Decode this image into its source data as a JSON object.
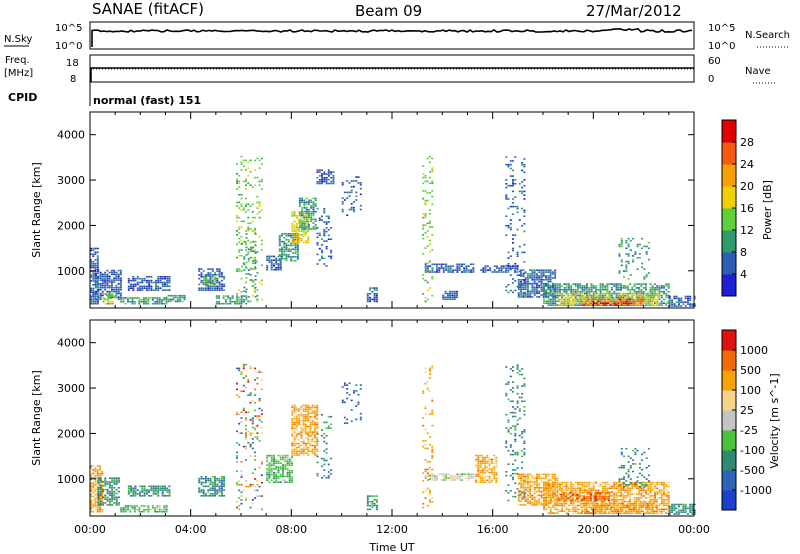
{
  "header": {
    "station": "SANAE (fitACF)",
    "beam": "Beam 09",
    "date": "27/Mar/2012"
  },
  "status_panels": {
    "nsky_label": "N.Sky",
    "nsearch_label": "N.Search",
    "scale_top": "10^5",
    "scale_bottom": "10^0",
    "freq_label_line1": "Freq.",
    "freq_label_line2": "[MHz]",
    "freq_tick_top": "18",
    "freq_tick_bottom": "8",
    "nave_label": "Nave",
    "nave_tick_top": "60",
    "nave_tick_bottom": "0",
    "cpid_label": "CPID",
    "cpid_value": "normal (fast) 151"
  },
  "chart_data": [
    {
      "type": "heatmap",
      "name": "power",
      "ylabel": "Slant Range [km]",
      "xlim_hours": [
        0,
        24
      ],
      "ylim_km": [
        180,
        4500
      ],
      "y_ticks": [
        1000,
        2000,
        3000,
        4000
      ],
      "colorbar_label": "Power [dB]",
      "colorbar_ticks": [
        "4",
        "8",
        "12",
        "16",
        "20",
        "24",
        "28"
      ],
      "colorbar_colors": [
        "#1f1fd6",
        "#2a5fb4",
        "#2f9a6a",
        "#5fd03a",
        "#f0d000",
        "#f7a000",
        "#f55a10",
        "#e00000"
      ],
      "echo_regions": [
        {
          "t0": 0.0,
          "t1": 0.3,
          "r0": 250,
          "r1": 1500,
          "level": 1
        },
        {
          "t0": 0.2,
          "t1": 1.2,
          "r0": 350,
          "r1": 1000,
          "level": 1
        },
        {
          "t0": 0.5,
          "t1": 1.0,
          "r0": 250,
          "r1": 500,
          "level": 3
        },
        {
          "t0": 1.2,
          "t1": 3.0,
          "r0": 250,
          "r1": 400,
          "level": 2
        },
        {
          "t0": 1.5,
          "t1": 3.2,
          "r0": 550,
          "r1": 850,
          "level": 1
        },
        {
          "t0": 3.0,
          "t1": 3.8,
          "r0": 300,
          "r1": 450,
          "level": 2
        },
        {
          "t0": 4.3,
          "t1": 5.3,
          "r0": 550,
          "r1": 1050,
          "level": 1
        },
        {
          "t0": 4.5,
          "t1": 5.0,
          "r0": 650,
          "r1": 900,
          "level": 3
        },
        {
          "t0": 5.0,
          "t1": 6.2,
          "r0": 250,
          "r1": 450,
          "level": 2
        },
        {
          "t0": 5.8,
          "t1": 6.8,
          "r0": 300,
          "r1": 3500,
          "level": 3,
          "sparse": true
        },
        {
          "t0": 6.0,
          "t1": 6.6,
          "r0": 400,
          "r1": 1800,
          "level": 2,
          "sparse": true
        },
        {
          "t0": 7.0,
          "t1": 7.6,
          "r0": 1000,
          "r1": 1300,
          "level": 1
        },
        {
          "t0": 7.5,
          "t1": 8.3,
          "r0": 1200,
          "r1": 1800,
          "level": 2
        },
        {
          "t0": 8.0,
          "t1": 8.7,
          "r0": 1600,
          "r1": 2300,
          "level": 4
        },
        {
          "t0": 8.3,
          "t1": 9.0,
          "r0": 1900,
          "r1": 2600,
          "level": 2
        },
        {
          "t0": 9.0,
          "t1": 9.6,
          "r0": 1000,
          "r1": 2500,
          "level": 1,
          "sparse": true
        },
        {
          "t0": 9.0,
          "t1": 9.7,
          "r0": 2900,
          "r1": 3200,
          "level": 1
        },
        {
          "t0": 10.0,
          "t1": 10.8,
          "r0": 2200,
          "r1": 3100,
          "level": 1,
          "sparse": true
        },
        {
          "t0": 11.0,
          "t1": 11.4,
          "r0": 300,
          "r1": 600,
          "level": 1
        },
        {
          "t0": 13.3,
          "t1": 15.2,
          "r0": 950,
          "r1": 1150,
          "level": 1
        },
        {
          "t0": 13.2,
          "t1": 13.6,
          "r0": 300,
          "r1": 3500,
          "level": 3,
          "sparse": true
        },
        {
          "t0": 14.0,
          "t1": 14.6,
          "r0": 350,
          "r1": 550,
          "level": 1
        },
        {
          "t0": 15.5,
          "t1": 17.0,
          "r0": 950,
          "r1": 1100,
          "level": 1
        },
        {
          "t0": 16.5,
          "t1": 17.3,
          "r0": 500,
          "r1": 3500,
          "level": 1,
          "sparse": true
        },
        {
          "t0": 17.0,
          "t1": 18.5,
          "r0": 400,
          "r1": 1000,
          "level": 1
        },
        {
          "t0": 18.0,
          "t1": 23.0,
          "r0": 220,
          "r1": 700,
          "level": 2
        },
        {
          "t0": 18.6,
          "t1": 22.6,
          "r0": 220,
          "r1": 500,
          "level": 4
        },
        {
          "t0": 19.5,
          "t1": 22.0,
          "r0": 220,
          "r1": 350,
          "level": 6
        },
        {
          "t0": 20.0,
          "t1": 21.5,
          "r0": 220,
          "r1": 280,
          "level": 7
        },
        {
          "t0": 21.0,
          "t1": 22.2,
          "r0": 800,
          "r1": 1700,
          "level": 2,
          "sparse": true
        },
        {
          "t0": 23.0,
          "t1": 24.0,
          "r0": 200,
          "r1": 450,
          "level": 1
        }
      ]
    },
    {
      "type": "heatmap",
      "name": "velocity",
      "ylabel": "Slant Range [km]",
      "xlabel": "Time UT",
      "xlim_hours": [
        0,
        24
      ],
      "ylim_km": [
        180,
        4500
      ],
      "x_ticks": [
        "00:00",
        "04:00",
        "08:00",
        "12:00",
        "16:00",
        "20:00",
        "00:00"
      ],
      "y_ticks": [
        1000,
        2000,
        3000,
        4000
      ],
      "colorbar_label": "Velocity [m s^-1]",
      "colorbar_ticks": [
        "1000",
        "500",
        "100",
        "25",
        "-25",
        "-100",
        "-500",
        "-1000"
      ],
      "colorbar_colors": [
        "#1d3fd0",
        "#2c64b8",
        "#2f8a70",
        "#49c23d",
        "#c4c4c4",
        "#f6d28a",
        "#f6a200",
        "#f26a00",
        "#e01010"
      ],
      "echo_regions": [
        {
          "t0": 0.0,
          "t1": 0.5,
          "r0": 250,
          "r1": 1300,
          "level": 6
        },
        {
          "t0": 0.3,
          "t1": 1.2,
          "r0": 400,
          "r1": 1000,
          "level": 2
        },
        {
          "t0": 1.2,
          "t1": 3.0,
          "r0": 250,
          "r1": 400,
          "level": 3
        },
        {
          "t0": 1.5,
          "t1": 3.2,
          "r0": 600,
          "r1": 850,
          "level": 2
        },
        {
          "t0": 4.3,
          "t1": 5.3,
          "r0": 600,
          "r1": 1050,
          "level": 2
        },
        {
          "t0": 5.8,
          "t1": 6.8,
          "r0": 300,
          "r1": 3500,
          "level": 0,
          "sparse": true,
          "mixed": true
        },
        {
          "t0": 7.0,
          "t1": 8.0,
          "r0": 900,
          "r1": 1500,
          "level": 3
        },
        {
          "t0": 8.0,
          "t1": 9.0,
          "r0": 1500,
          "r1": 2600,
          "level": 6
        },
        {
          "t0": 9.0,
          "t1": 9.6,
          "r0": 1000,
          "r1": 2400,
          "level": 2,
          "sparse": true
        },
        {
          "t0": 10.0,
          "t1": 10.8,
          "r0": 2200,
          "r1": 3100,
          "level": 1,
          "sparse": true
        },
        {
          "t0": 11.0,
          "t1": 11.4,
          "r0": 300,
          "r1": 600,
          "level": 2
        },
        {
          "t0": 13.3,
          "t1": 15.2,
          "r0": 950,
          "r1": 1100,
          "level": 4
        },
        {
          "t0": 13.2,
          "t1": 13.6,
          "r0": 300,
          "r1": 3500,
          "level": 6,
          "sparse": true
        },
        {
          "t0": 15.3,
          "t1": 16.2,
          "r0": 900,
          "r1": 1500,
          "level": 6
        },
        {
          "t0": 16.5,
          "t1": 17.3,
          "r0": 500,
          "r1": 3500,
          "level": 2,
          "sparse": true
        },
        {
          "t0": 17.0,
          "t1": 18.6,
          "r0": 400,
          "r1": 1100,
          "level": 6
        },
        {
          "t0": 18.0,
          "t1": 23.0,
          "r0": 220,
          "r1": 900,
          "level": 6
        },
        {
          "t0": 18.6,
          "t1": 20.6,
          "r0": 500,
          "r1": 700,
          "level": 7
        },
        {
          "t0": 19.5,
          "t1": 22.5,
          "r0": 220,
          "r1": 500,
          "level": 6
        },
        {
          "t0": 21.0,
          "t1": 22.2,
          "r0": 800,
          "r1": 1700,
          "level": 2,
          "sparse": true
        },
        {
          "t0": 23.0,
          "t1": 24.0,
          "r0": 200,
          "r1": 450,
          "level": 2
        }
      ]
    }
  ]
}
